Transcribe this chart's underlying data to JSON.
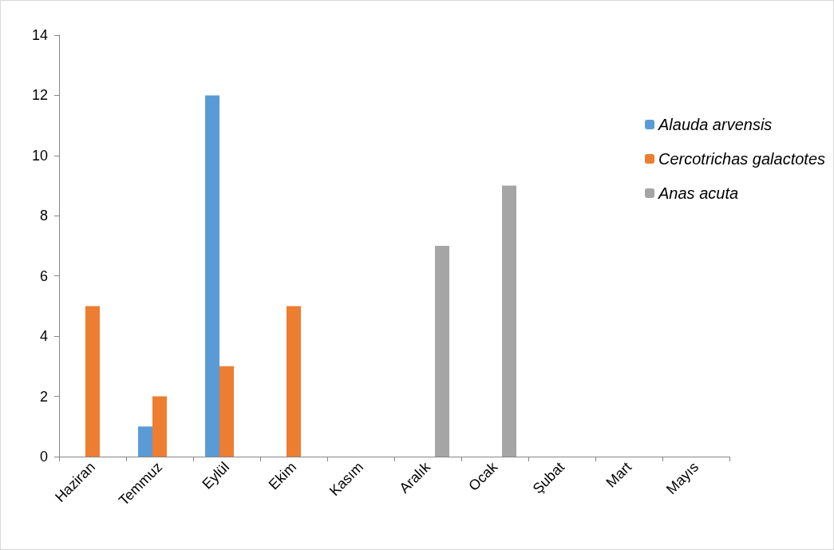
{
  "chart_data": {
    "type": "bar",
    "categories": [
      "Haziran",
      "Temmuz",
      "Eylül",
      "Ekim",
      "Kasım",
      "Aralık",
      "Ocak",
      "Şubat",
      "Mart",
      "Mayıs"
    ],
    "series": [
      {
        "name": "Alauda arvensis",
        "color": "#5b9bd5",
        "values": [
          0,
          1,
          12,
          0,
          0,
          0,
          0,
          0,
          0,
          0
        ]
      },
      {
        "name": "Cercotrichas galactotes",
        "color": "#ed7d31",
        "values": [
          5,
          2,
          3,
          5,
          0,
          0,
          0,
          0,
          0,
          0
        ]
      },
      {
        "name": "Anas acuta",
        "color": "#a5a5a5",
        "values": [
          0,
          0,
          0,
          0,
          0,
          7,
          9,
          0,
          0,
          0
        ]
      }
    ],
    "ylim": [
      0,
      14
    ],
    "yticks": [
      0,
      2,
      4,
      6,
      8,
      10,
      12,
      14
    ],
    "grid": false,
    "legend": "right"
  }
}
